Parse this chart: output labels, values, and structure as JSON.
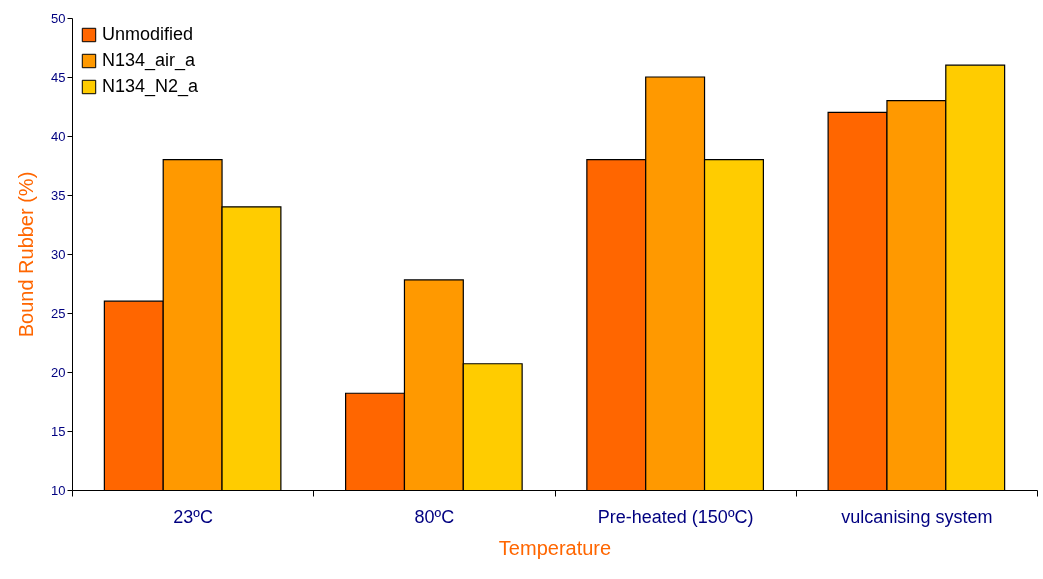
{
  "chart_data": {
    "type": "bar",
    "xlabel": "Temperature",
    "ylabel": "Bound Rubber (%)",
    "categories": [
      "23ºC",
      "80ºC",
      "Pre-heated (150ºC)",
      "vulcanising system"
    ],
    "series": [
      {
        "name": "Unmodified",
        "color": "#ff6600",
        "values": [
          26,
          18.2,
          38,
          42
        ]
      },
      {
        "name": "N134_air_a",
        "color": "#ff9900",
        "values": [
          38,
          27.8,
          45,
          43
        ]
      },
      {
        "name": "N134_N2_a",
        "color": "#ffcc00",
        "values": [
          34,
          20.7,
          38,
          46
        ]
      }
    ],
    "ylim": [
      10,
      50
    ],
    "yticks": [
      10,
      15,
      20,
      25,
      30,
      35,
      40,
      45,
      50
    ],
    "legend": "top left"
  }
}
